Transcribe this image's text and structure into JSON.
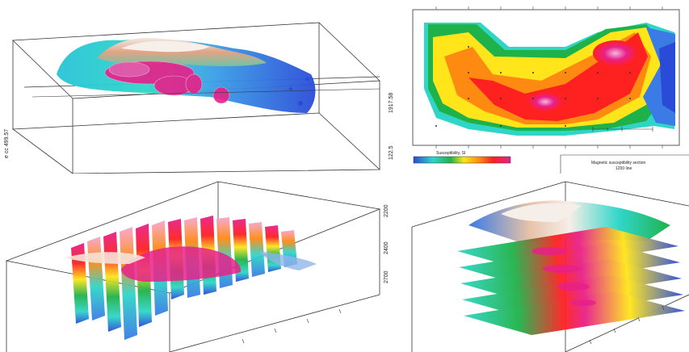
{
  "panel_tl": {
    "axis_left_text": "e cc 499.57",
    "axis_right_top": "1917.58",
    "axis_right_bottom": "122.5"
  },
  "panel_tr": {
    "colorbar_title": "Susceptibility, SI",
    "title_line1": "Magnetic susceptibility section",
    "title_line2": "1200 line"
  },
  "panel_bl": {
    "axis_right_1": "2200",
    "axis_right_2": "2400",
    "axis_right_3": "2700"
  },
  "panel_br": {},
  "colors": {
    "background": "#ffffff",
    "frame": "#333333",
    "high": "#e8208a",
    "mid": "#ff3b1f",
    "low": "#2a4bd8"
  }
}
